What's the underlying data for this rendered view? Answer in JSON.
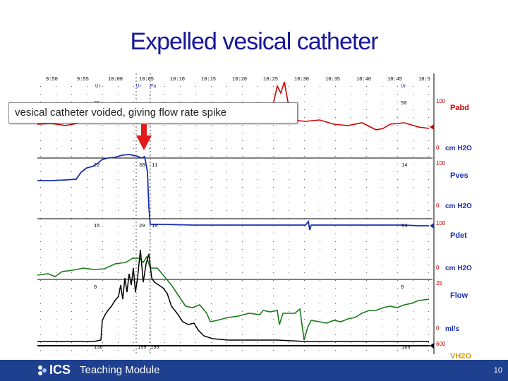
{
  "slide": {
    "title": "Expelled vesical catheter",
    "callout": "vesical catheter voided, giving flow rate spike",
    "page_number": "10"
  },
  "footer": {
    "logo_text": "ICS",
    "module": "Teaching Module",
    "color": "#1f3f8f"
  },
  "trace": {
    "time_labels": [
      "9:50",
      "9:55",
      "10:00",
      "10:05",
      "10:10",
      "10:15",
      "10:20",
      "10:25",
      "10:30",
      "10:35",
      "10:40",
      "10:45",
      "10:5"
    ],
    "event_markers": [
      "Ur",
      "Ur",
      "Pa",
      "Ur"
    ],
    "channels": [
      {
        "name": "Pabd",
        "top_scale": "100",
        "bottom_scale": "0",
        "unit": "cm H2O",
        "color": "#cc0000",
        "values": [
          "20",
          "50"
        ]
      },
      {
        "name": "Pves",
        "top_scale": "100",
        "bottom_scale": "0",
        "unit": "cm H2O",
        "color": "#1a2fb0",
        "values": [
          "22",
          "30",
          "11",
          "14"
        ]
      },
      {
        "name": "Pdet",
        "top_scale": "100",
        "bottom_scale": "0",
        "unit": "cm H2O",
        "color": "#1a2fb0",
        "values": [
          "15",
          "29",
          "10",
          "64"
        ]
      },
      {
        "name": "Flow",
        "top_scale": "25",
        "bottom_scale": "0",
        "unit": "ml/s",
        "color": "#000000",
        "values": [
          "0",
          "0"
        ]
      },
      {
        "name": "VH2O",
        "top_scale": "600",
        "bottom_scale": "",
        "unit": "",
        "color": "#d49a00",
        "values": [
          "136",
          "199",
          "199",
          "169"
        ]
      }
    ],
    "pdet_green_color": "#1a7a1a"
  }
}
